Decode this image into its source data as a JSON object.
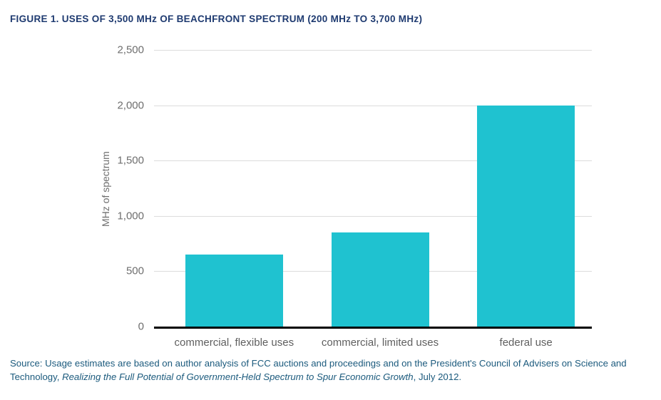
{
  "chart_data": {
    "type": "bar",
    "categories": [
      "commercial, flexible uses",
      "commercial, limited uses",
      "federal use"
    ],
    "values": [
      650,
      850,
      2000
    ],
    "title": "FIGURE 1. USES OF 3,500 MHz OF BEACHFRONT SPECTRUM (200 MHz TO 3,700 MHz)",
    "xlabel": "",
    "ylabel": "MHz of spectrum",
    "ylim": [
      0,
      2500
    ],
    "ytick_step": 500,
    "bar_color": "#1fc2d0",
    "grid": true,
    "legend": "none"
  },
  "source": {
    "prefix": "Source: Usage estimates are based on author analysis of FCC auctions and proceedings and on the President's Council of Advisers on Science and Technology, ",
    "italic": "Realizing the Full Potential of Government-Held Spectrum to Spur Economic Growth",
    "suffix": ", July 2012."
  }
}
